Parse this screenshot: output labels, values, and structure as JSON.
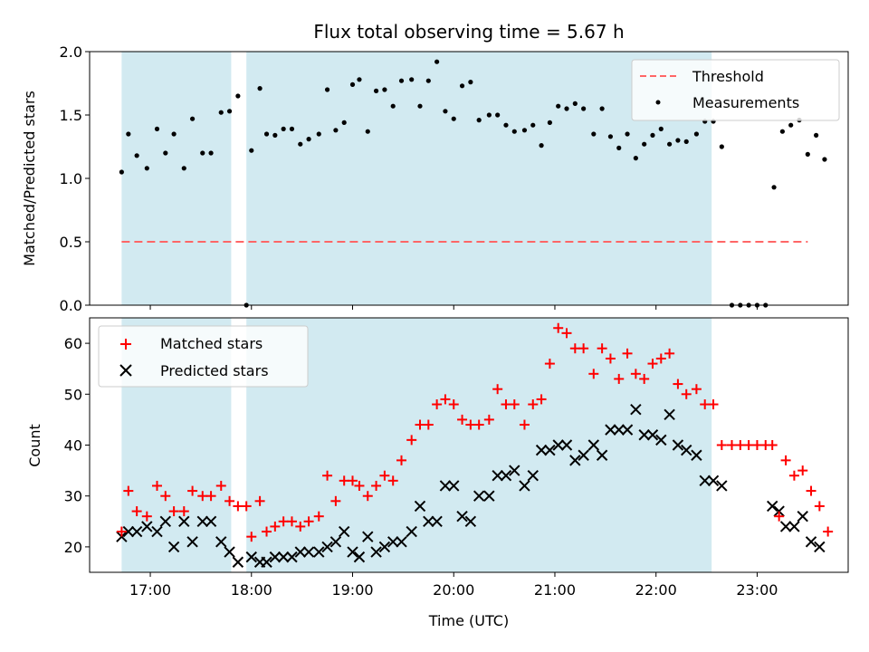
{
  "chart_data": [
    {
      "panel": "top",
      "type": "scatter",
      "title": "Flux total observing time = 5.67 h",
      "ylabel": "Matched/Predicted stars",
      "xlim": [
        "16:24",
        "23:54"
      ],
      "ylim": [
        0,
        2.0
      ],
      "yticks": [
        0.0,
        0.5,
        1.0,
        1.5,
        2.0
      ],
      "ytick_labels": [
        "0.0",
        "0.5",
        "1.0",
        "1.5",
        "2.0"
      ],
      "grid": false,
      "legend_position": "top-right",
      "observing_windows": [
        {
          "start": "16:43",
          "end": "17:48"
        },
        {
          "start": "17:57",
          "end": "22:33"
        }
      ],
      "window_color": "#add8e6",
      "threshold": {
        "name": "Threshold",
        "value": 0.5,
        "x_start": "16:43",
        "x_end": "23:30",
        "color": "#ff6666",
        "style": "dashed"
      },
      "series": [
        {
          "name": "Measurements",
          "marker": "dot",
          "color": "#000000",
          "points": [
            [
              "16:43",
              1.05
            ],
            [
              "16:47",
              1.35
            ],
            [
              "16:52",
              1.18
            ],
            [
              "16:58",
              1.08
            ],
            [
              "17:04",
              1.39
            ],
            [
              "17:09",
              1.2
            ],
            [
              "17:14",
              1.35
            ],
            [
              "17:20",
              1.08
            ],
            [
              "17:25",
              1.47
            ],
            [
              "17:31",
              1.2
            ],
            [
              "17:36",
              1.2
            ],
            [
              "17:42",
              1.52
            ],
            [
              "17:47",
              1.53
            ],
            [
              "17:52",
              1.65
            ],
            [
              "17:57",
              0.0
            ],
            [
              "18:00",
              1.22
            ],
            [
              "18:05",
              1.71
            ],
            [
              "18:09",
              1.35
            ],
            [
              "18:14",
              1.34
            ],
            [
              "18:19",
              1.39
            ],
            [
              "18:24",
              1.39
            ],
            [
              "18:29",
              1.27
            ],
            [
              "18:34",
              1.31
            ],
            [
              "18:40",
              1.35
            ],
            [
              "18:45",
              1.7
            ],
            [
              "18:50",
              1.38
            ],
            [
              "18:55",
              1.44
            ],
            [
              "19:00",
              1.74
            ],
            [
              "19:04",
              1.78
            ],
            [
              "19:09",
              1.37
            ],
            [
              "19:14",
              1.69
            ],
            [
              "19:19",
              1.7
            ],
            [
              "19:24",
              1.57
            ],
            [
              "19:29",
              1.77
            ],
            [
              "19:35",
              1.78
            ],
            [
              "19:40",
              1.57
            ],
            [
              "19:45",
              1.77
            ],
            [
              "19:50",
              1.92
            ],
            [
              "19:55",
              1.53
            ],
            [
              "20:00",
              1.47
            ],
            [
              "20:05",
              1.73
            ],
            [
              "20:10",
              1.76
            ],
            [
              "20:15",
              1.46
            ],
            [
              "20:21",
              1.5
            ],
            [
              "20:26",
              1.5
            ],
            [
              "20:31",
              1.42
            ],
            [
              "20:36",
              1.37
            ],
            [
              "20:42",
              1.38
            ],
            [
              "20:47",
              1.42
            ],
            [
              "20:52",
              1.26
            ],
            [
              "20:57",
              1.44
            ],
            [
              "21:02",
              1.57
            ],
            [
              "21:07",
              1.55
            ],
            [
              "21:12",
              1.59
            ],
            [
              "21:17",
              1.55
            ],
            [
              "21:23",
              1.35
            ],
            [
              "21:28",
              1.55
            ],
            [
              "21:33",
              1.33
            ],
            [
              "21:38",
              1.24
            ],
            [
              "21:43",
              1.35
            ],
            [
              "21:48",
              1.16
            ],
            [
              "21:53",
              1.27
            ],
            [
              "21:58",
              1.34
            ],
            [
              "22:03",
              1.39
            ],
            [
              "22:08",
              1.27
            ],
            [
              "22:13",
              1.3
            ],
            [
              "22:18",
              1.29
            ],
            [
              "22:24",
              1.35
            ],
            [
              "22:29",
              1.45
            ],
            [
              "22:34",
              1.45
            ],
            [
              "22:39",
              1.25
            ],
            [
              "22:45",
              0.0
            ],
            [
              "22:50",
              0.0
            ],
            [
              "22:55",
              0.0
            ],
            [
              "23:00",
              0.0
            ],
            [
              "23:05",
              0.0
            ],
            [
              "23:10",
              0.93
            ],
            [
              "23:15",
              1.37
            ],
            [
              "23:20",
              1.42
            ],
            [
              "23:25",
              1.46
            ],
            [
              "23:30",
              1.19
            ],
            [
              "23:35",
              1.34
            ],
            [
              "23:40",
              1.15
            ]
          ]
        }
      ]
    },
    {
      "panel": "bottom",
      "type": "scatter",
      "xlabel": "Time (UTC)",
      "ylabel": "Count",
      "xlim": [
        "16:24",
        "23:54"
      ],
      "ylim": [
        15,
        65
      ],
      "xticks": [
        "17:00",
        "18:00",
        "19:00",
        "20:00",
        "21:00",
        "22:00",
        "23:00"
      ],
      "yticks": [
        20,
        30,
        40,
        50,
        60
      ],
      "ytick_labels": [
        "20",
        "30",
        "40",
        "50",
        "60"
      ],
      "grid": false,
      "legend_position": "top-left",
      "observing_windows": [
        {
          "start": "16:43",
          "end": "17:48"
        },
        {
          "start": "17:57",
          "end": "22:33"
        }
      ],
      "window_color": "#add8e6",
      "series": [
        {
          "name": "Matched stars",
          "marker": "plus",
          "color": "#ff0000",
          "points": [
            [
              "16:43",
              23
            ],
            [
              "16:47",
              31
            ],
            [
              "16:52",
              27
            ],
            [
              "16:58",
              26
            ],
            [
              "17:04",
              32
            ],
            [
              "17:09",
              30
            ],
            [
              "17:14",
              27
            ],
            [
              "17:20",
              27
            ],
            [
              "17:25",
              31
            ],
            [
              "17:31",
              30
            ],
            [
              "17:36",
              30
            ],
            [
              "17:42",
              32
            ],
            [
              "17:47",
              29
            ],
            [
              "17:52",
              28
            ],
            [
              "17:57",
              28
            ],
            [
              "18:00",
              22
            ],
            [
              "18:05",
              29
            ],
            [
              "18:09",
              23
            ],
            [
              "18:14",
              24
            ],
            [
              "18:19",
              25
            ],
            [
              "18:24",
              25
            ],
            [
              "18:29",
              24
            ],
            [
              "18:34",
              25
            ],
            [
              "18:40",
              26
            ],
            [
              "18:45",
              34
            ],
            [
              "18:50",
              29
            ],
            [
              "18:55",
              33
            ],
            [
              "19:00",
              33
            ],
            [
              "19:04",
              32
            ],
            [
              "19:09",
              30
            ],
            [
              "19:14",
              32
            ],
            [
              "19:19",
              34
            ],
            [
              "19:24",
              33
            ],
            [
              "19:29",
              37
            ],
            [
              "19:35",
              41
            ],
            [
              "19:40",
              44
            ],
            [
              "19:45",
              44
            ],
            [
              "19:50",
              48
            ],
            [
              "19:55",
              49
            ],
            [
              "20:00",
              48
            ],
            [
              "20:05",
              45
            ],
            [
              "20:10",
              44
            ],
            [
              "20:15",
              44
            ],
            [
              "20:21",
              45
            ],
            [
              "20:26",
              51
            ],
            [
              "20:31",
              48
            ],
            [
              "20:36",
              48
            ],
            [
              "20:42",
              44
            ],
            [
              "20:47",
              48
            ],
            [
              "20:52",
              49
            ],
            [
              "20:57",
              56
            ],
            [
              "21:02",
              63
            ],
            [
              "21:07",
              62
            ],
            [
              "21:12",
              59
            ],
            [
              "21:17",
              59
            ],
            [
              "21:23",
              54
            ],
            [
              "21:28",
              59
            ],
            [
              "21:33",
              57
            ],
            [
              "21:38",
              53
            ],
            [
              "21:43",
              58
            ],
            [
              "21:48",
              54
            ],
            [
              "21:53",
              53
            ],
            [
              "21:58",
              56
            ],
            [
              "22:03",
              57
            ],
            [
              "22:08",
              58
            ],
            [
              "22:13",
              52
            ],
            [
              "22:18",
              50
            ],
            [
              "22:24",
              51
            ],
            [
              "22:29",
              48
            ],
            [
              "22:34",
              48
            ],
            [
              "22:39",
              40
            ],
            [
              "22:45",
              40
            ],
            [
              "22:50",
              40
            ],
            [
              "22:55",
              40
            ],
            [
              "23:00",
              40
            ],
            [
              "23:05",
              40
            ],
            [
              "23:09",
              40
            ],
            [
              "23:13",
              26
            ],
            [
              "23:17",
              37
            ],
            [
              "23:22",
              34
            ],
            [
              "23:27",
              35
            ],
            [
              "23:32",
              31
            ],
            [
              "23:37",
              28
            ],
            [
              "23:42",
              23
            ]
          ]
        },
        {
          "name": "Predicted stars",
          "marker": "x",
          "color": "#000000",
          "points": [
            [
              "16:43",
              22
            ],
            [
              "16:47",
              23
            ],
            [
              "16:52",
              23
            ],
            [
              "16:58",
              24
            ],
            [
              "17:04",
              23
            ],
            [
              "17:09",
              25
            ],
            [
              "17:14",
              20
            ],
            [
              "17:20",
              25
            ],
            [
              "17:25",
              21
            ],
            [
              "17:31",
              25
            ],
            [
              "17:36",
              25
            ],
            [
              "17:42",
              21
            ],
            [
              "17:47",
              19
            ],
            [
              "17:52",
              17
            ],
            [
              "18:00",
              18
            ],
            [
              "18:05",
              17
            ],
            [
              "18:09",
              17
            ],
            [
              "18:14",
              18
            ],
            [
              "18:19",
              18
            ],
            [
              "18:24",
              18
            ],
            [
              "18:29",
              19
            ],
            [
              "18:34",
              19
            ],
            [
              "18:40",
              19
            ],
            [
              "18:45",
              20
            ],
            [
              "18:50",
              21
            ],
            [
              "18:55",
              23
            ],
            [
              "19:00",
              19
            ],
            [
              "19:04",
              18
            ],
            [
              "19:09",
              22
            ],
            [
              "19:14",
              19
            ],
            [
              "19:19",
              20
            ],
            [
              "19:24",
              21
            ],
            [
              "19:29",
              21
            ],
            [
              "19:35",
              23
            ],
            [
              "19:40",
              28
            ],
            [
              "19:45",
              25
            ],
            [
              "19:50",
              25
            ],
            [
              "19:55",
              32
            ],
            [
              "20:00",
              32
            ],
            [
              "20:05",
              26
            ],
            [
              "20:10",
              25
            ],
            [
              "20:15",
              30
            ],
            [
              "20:21",
              30
            ],
            [
              "20:26",
              34
            ],
            [
              "20:31",
              34
            ],
            [
              "20:36",
              35
            ],
            [
              "20:42",
              32
            ],
            [
              "20:47",
              34
            ],
            [
              "20:52",
              39
            ],
            [
              "20:57",
              39
            ],
            [
              "21:02",
              40
            ],
            [
              "21:07",
              40
            ],
            [
              "21:12",
              37
            ],
            [
              "21:17",
              38
            ],
            [
              "21:23",
              40
            ],
            [
              "21:28",
              38
            ],
            [
              "21:33",
              43
            ],
            [
              "21:38",
              43
            ],
            [
              "21:43",
              43
            ],
            [
              "21:48",
              47
            ],
            [
              "21:53",
              42
            ],
            [
              "21:58",
              42
            ],
            [
              "22:03",
              41
            ],
            [
              "22:08",
              46
            ],
            [
              "22:13",
              40
            ],
            [
              "22:18",
              39
            ],
            [
              "22:24",
              38
            ],
            [
              "22:29",
              33
            ],
            [
              "22:34",
              33
            ],
            [
              "22:39",
              32
            ],
            [
              "23:09",
              28
            ],
            [
              "23:13",
              27
            ],
            [
              "23:17",
              24
            ],
            [
              "23:22",
              24
            ],
            [
              "23:27",
              26
            ],
            [
              "23:32",
              21
            ],
            [
              "23:37",
              20
            ]
          ]
        }
      ]
    }
  ]
}
